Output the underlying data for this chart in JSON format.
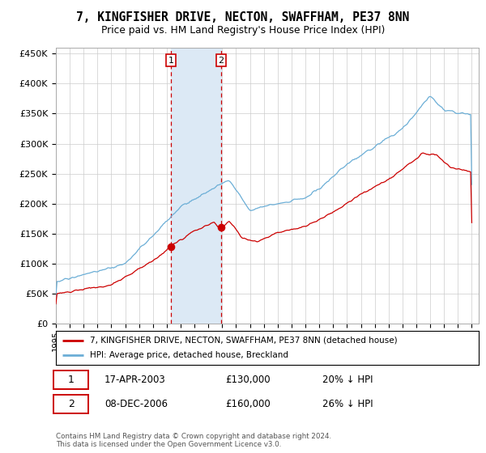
{
  "title": "7, KINGFISHER DRIVE, NECTON, SWAFFHAM, PE37 8NN",
  "subtitle": "Price paid vs. HM Land Registry's House Price Index (HPI)",
  "yticks": [
    0,
    50000,
    100000,
    150000,
    200000,
    250000,
    300000,
    350000,
    400000,
    450000
  ],
  "ytick_labels": [
    "£0",
    "£50K",
    "£100K",
    "£150K",
    "£200K",
    "£250K",
    "£300K",
    "£350K",
    "£400K",
    "£450K"
  ],
  "hpi_color": "#6baed6",
  "price_color": "#cc0000",
  "sale1_date_str": "17-APR-2003",
  "sale1_price": 130000,
  "sale1_hpi_pct": "20% ↓ HPI",
  "sale2_date_str": "08-DEC-2006",
  "sale2_price": 160000,
  "sale2_hpi_pct": "26% ↓ HPI",
  "legend_line1": "7, KINGFISHER DRIVE, NECTON, SWAFFHAM, PE37 8NN (detached house)",
  "legend_line2": "HPI: Average price, detached house, Breckland",
  "footer": "Contains HM Land Registry data © Crown copyright and database right 2024.\nThis data is licensed under the Open Government Licence v3.0.",
  "bg_color": "#ffffff",
  "grid_color": "#cccccc",
  "sale1_x": 2003.29,
  "sale2_x": 2006.92,
  "vline_color": "#cc0000",
  "shade_color": "#dce9f5",
  "xlim_left": 1995.0,
  "xlim_right": 2025.5
}
